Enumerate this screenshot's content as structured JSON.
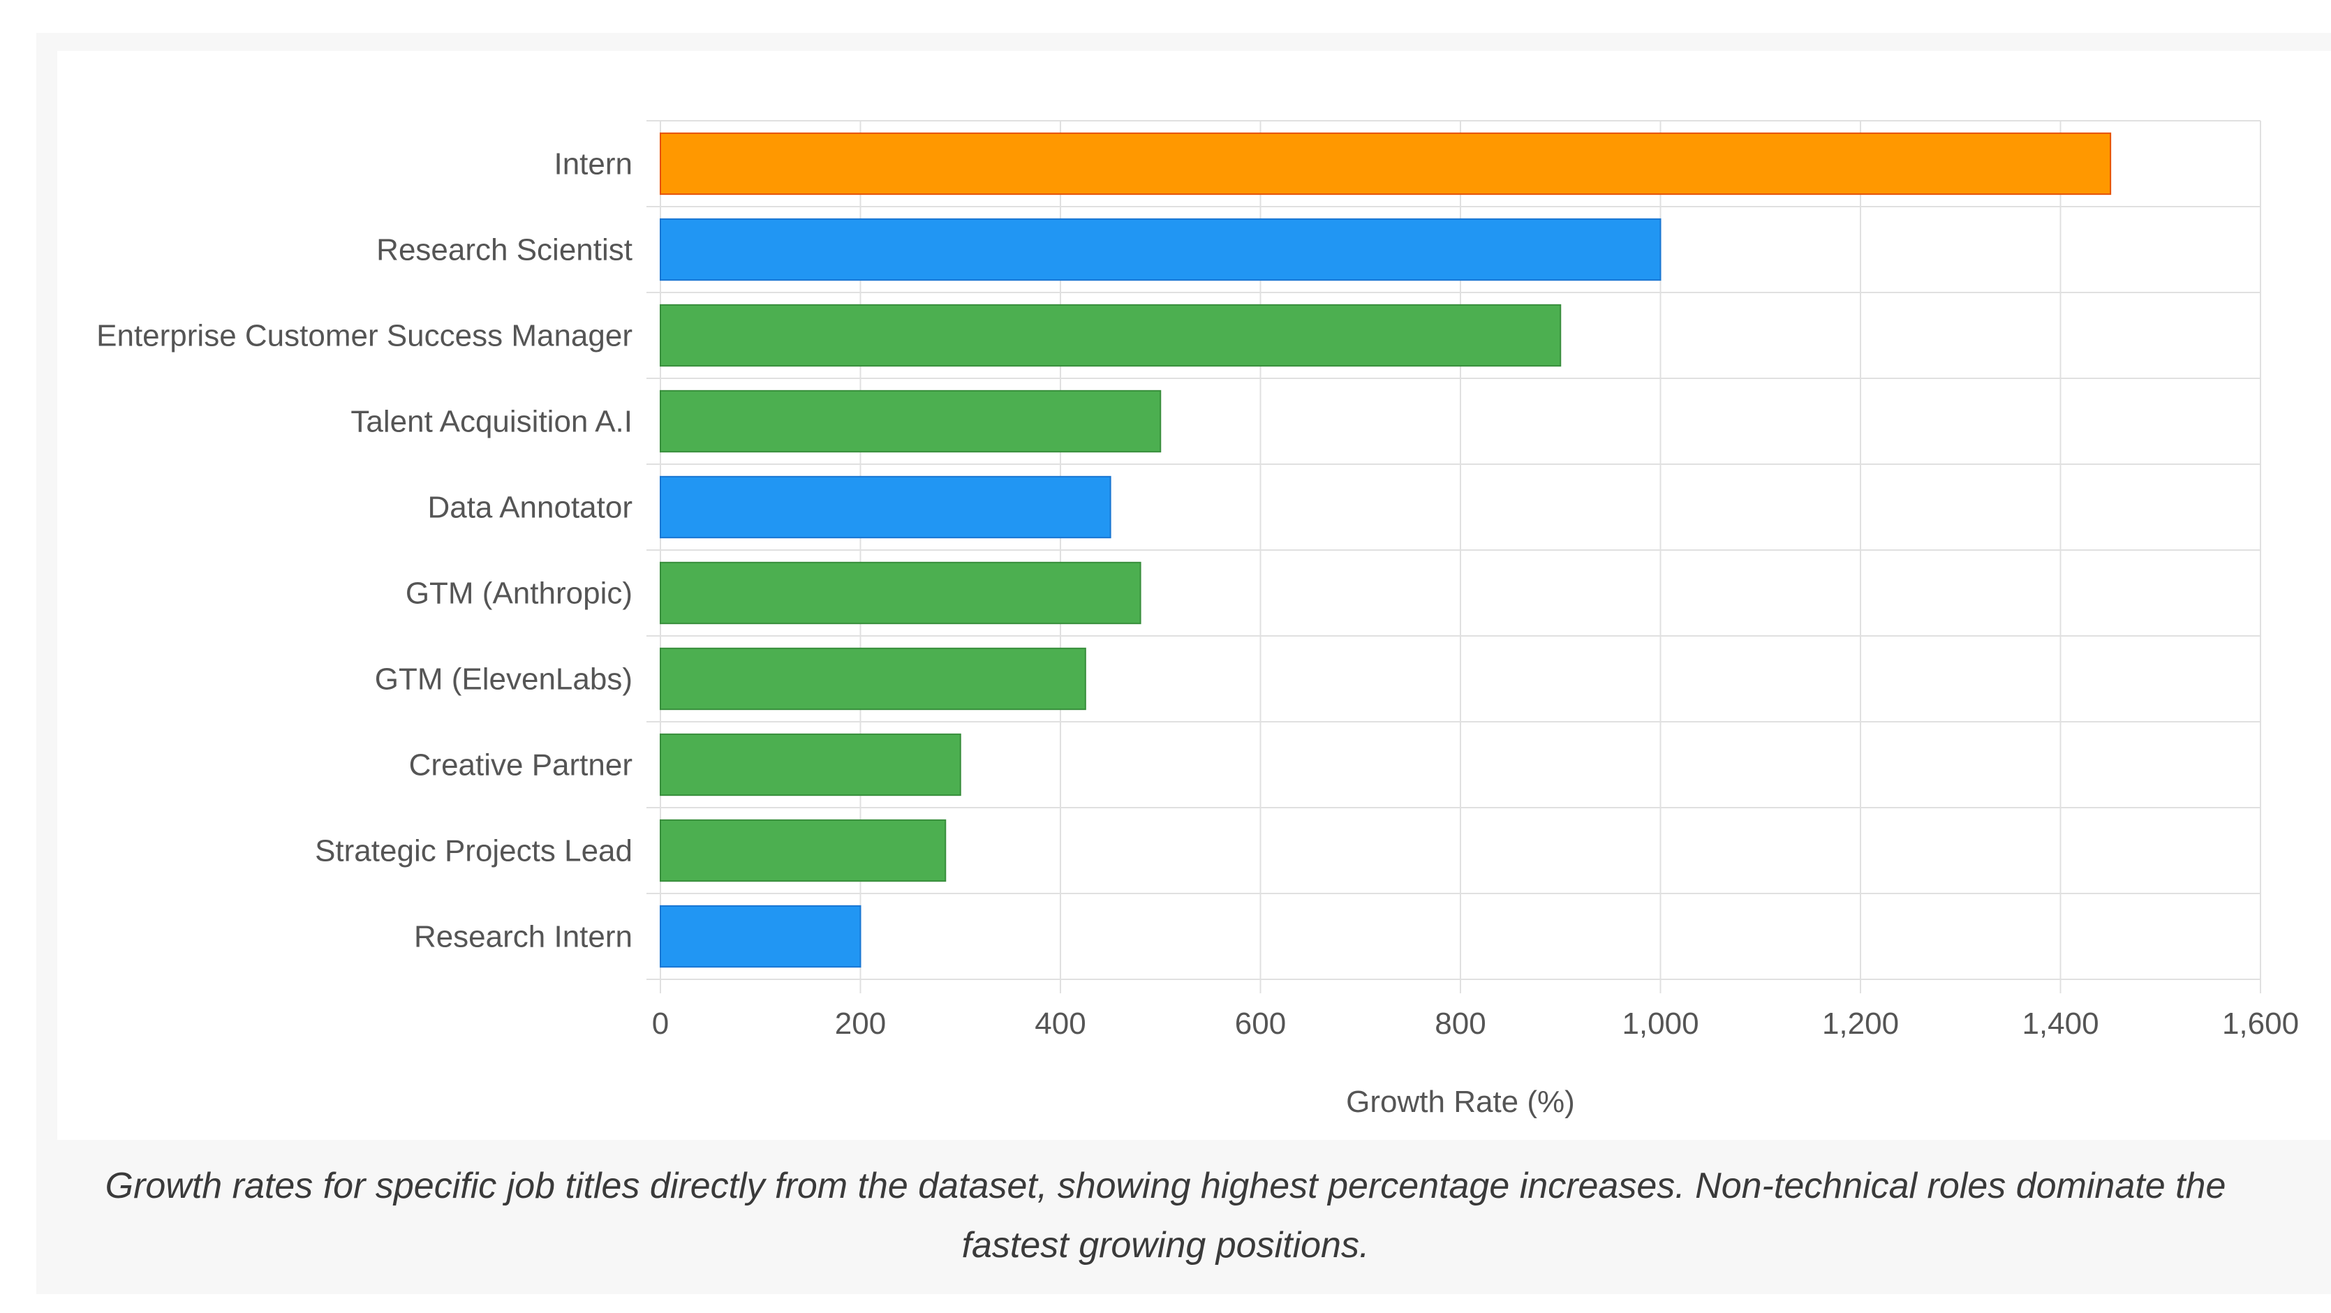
{
  "chart_data": {
    "type": "bar",
    "orientation": "horizontal",
    "title": "",
    "xlabel": "Growth Rate (%)",
    "ylabel": "",
    "xlim": [
      0,
      1600
    ],
    "xticks": [
      0,
      200,
      400,
      600,
      800,
      1000,
      1200,
      1400,
      1600
    ],
    "xtick_labels": [
      "0",
      "200",
      "400",
      "600",
      "800",
      "1,000",
      "1,200",
      "1,400",
      "1,600"
    ],
    "grid": true,
    "categories": [
      "Intern",
      "Research Scientist",
      "Enterprise Customer Success Manager",
      "Talent Acquisition A.I",
      "Data Annotator",
      "GTM (Anthropic)",
      "GTM (ElevenLabs)",
      "Creative Partner",
      "Strategic Projects Lead",
      "Research Intern"
    ],
    "values": [
      1450,
      1000,
      900,
      500,
      450,
      480,
      425,
      300,
      285,
      200
    ],
    "bar_colors": [
      "#ff9800",
      "#2196f3",
      "#4caf50",
      "#4caf50",
      "#2196f3",
      "#4caf50",
      "#4caf50",
      "#4caf50",
      "#4caf50",
      "#2196f3"
    ],
    "bar_border_colors": [
      "#e65100",
      "#1976d2",
      "#388e3c",
      "#388e3c",
      "#1976d2",
      "#388e3c",
      "#388e3c",
      "#388e3c",
      "#388e3c",
      "#1976d2"
    ],
    "grid_color": "#e0e0e0",
    "text_color": "#555555"
  },
  "caption": {
    "line1": "Growth rates for specific job titles directly from the dataset, showing highest percentage increases. Non-technical roles dominate the",
    "line2": "fastest growing positions."
  }
}
